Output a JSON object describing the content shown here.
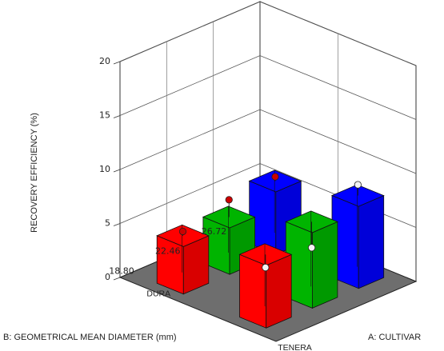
{
  "chart_data": {
    "type": "bar3d",
    "x_axis": {
      "label": "A: CULTIVAR",
      "categories": [
        "DURA",
        "TENERA"
      ]
    },
    "y_axis": {
      "label": "B: GEOMETRICAL MEAN DIAMETER (mm)",
      "ticks": [
        "18.80",
        "22.46",
        "26.72"
      ]
    },
    "z_axis": {
      "label": "RECOVERY EFFICIENCY (%)",
      "ticks": [
        "0",
        "5",
        "10",
        "15",
        "20"
      ],
      "range": [
        0,
        20
      ]
    },
    "bars": [
      {
        "cultivar": "DURA",
        "gmd": "18.80",
        "value": 4.4,
        "color": "#ff0000",
        "point": 4.8,
        "point_color": "#cc0000"
      },
      {
        "cultivar": "DURA",
        "gmd": "22.46",
        "value": 4.3,
        "color": "#00b400",
        "point": 5.9,
        "point_color": "#cc0000"
      },
      {
        "cultivar": "DURA",
        "gmd": "26.72",
        "value": 5.8,
        "color": "#0000ff",
        "point": 6.2,
        "point_color": "#cc0000"
      },
      {
        "cultivar": "TENERA",
        "gmd": "18.80",
        "value": 5.8,
        "color": "#ff0000",
        "point": 4.6,
        "point_color": "#f4f4f4"
      },
      {
        "cultivar": "TENERA",
        "gmd": "22.46",
        "value": 7.0,
        "color": "#00b400",
        "point": 4.6,
        "point_color": "#f4f4f4"
      },
      {
        "cultivar": "TENERA",
        "gmd": "26.72",
        "value": 7.6,
        "color": "#0000ff",
        "point": 8.6,
        "point_color": "#f4f4f4"
      }
    ],
    "floor_color": "#6e6e6e",
    "grid": true
  }
}
